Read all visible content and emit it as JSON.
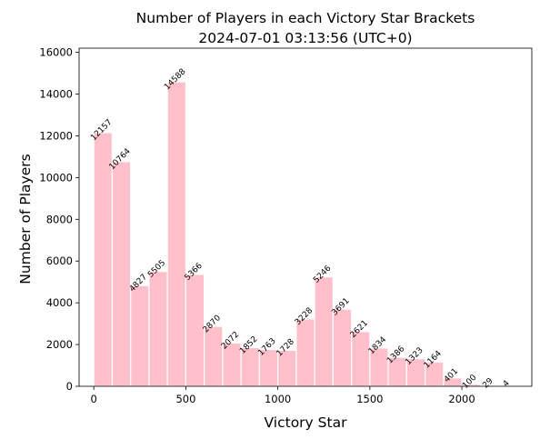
{
  "chart_data": {
    "type": "bar",
    "title_line1": "Number of Players in each Victory Star Brackets",
    "title_line2": "2024-07-01 03:13:56 (UTC+0)",
    "xlabel": "Victory Star",
    "ylabel": "Number of Players",
    "bar_color": "#ffc0cb",
    "bar_edge_color": "#ffffff",
    "bin_width": 100,
    "xlim": [
      -80,
      2380
    ],
    "ylim": [
      0,
      16200
    ],
    "xticks": [
      0,
      500,
      1000,
      1500,
      2000
    ],
    "yticks": [
      0,
      2000,
      4000,
      6000,
      8000,
      10000,
      12000,
      14000,
      16000
    ],
    "grid": false,
    "bins": [
      {
        "start": 0,
        "value": 12157
      },
      {
        "start": 100,
        "value": 10764
      },
      {
        "start": 200,
        "value": 4827
      },
      {
        "start": 300,
        "value": 5505
      },
      {
        "start": 400,
        "value": 14588
      },
      {
        "start": 500,
        "value": 5366
      },
      {
        "start": 600,
        "value": 2870
      },
      {
        "start": 700,
        "value": 2072
      },
      {
        "start": 800,
        "value": 1852
      },
      {
        "start": 900,
        "value": 1763
      },
      {
        "start": 1000,
        "value": 1728
      },
      {
        "start": 1100,
        "value": 3228
      },
      {
        "start": 1200,
        "value": 5246
      },
      {
        "start": 1300,
        "value": 3691
      },
      {
        "start": 1400,
        "value": 2621
      },
      {
        "start": 1500,
        "value": 1834
      },
      {
        "start": 1600,
        "value": 1386
      },
      {
        "start": 1700,
        "value": 1323
      },
      {
        "start": 1800,
        "value": 1164
      },
      {
        "start": 1900,
        "value": 401
      },
      {
        "start": 2000,
        "value": 100
      },
      {
        "start": 2100,
        "value": 29
      },
      {
        "start": 2200,
        "value": 4
      }
    ]
  }
}
